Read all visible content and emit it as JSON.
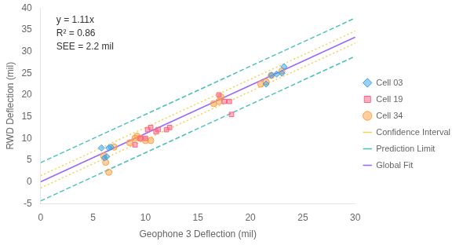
{
  "chart_data": {
    "type": "scatter",
    "xlabel": "Geophone 3 Deflection (mil)",
    "ylabel": "RWD Deflection (mil)",
    "annotation": "y = 1.11x\nR² = 0.86\nSEE = 2.2 mil",
    "xlim": [
      0,
      30
    ],
    "ylim": [
      -5,
      40
    ],
    "xticks": [
      0,
      5,
      10,
      15,
      20,
      25,
      30
    ],
    "yticks": [
      -5,
      0,
      5,
      10,
      15,
      20,
      25,
      30,
      35,
      40
    ],
    "grid": false,
    "legend": "right",
    "series": [
      {
        "name": "Cell 03",
        "type": "scatter",
        "marker": "diamond",
        "x": [
          5.8,
          6.1,
          6.3,
          6.5,
          6.7,
          21.5,
          22.0,
          22.5,
          23.0,
          23.2
        ],
        "values": [
          7.8,
          5.5,
          5.8,
          7.8,
          8.0,
          22.5,
          24.5,
          24.8,
          25.0,
          26.5
        ]
      },
      {
        "name": "Cell 19",
        "type": "scatter",
        "marker": "square",
        "x": [
          9.0,
          9.5,
          10.0,
          10.2,
          10.5,
          11.0,
          11.2,
          12.0,
          12.3,
          17.0,
          17.5,
          18.0,
          18.2
        ],
        "values": [
          8.5,
          10.0,
          10.0,
          12.0,
          12.5,
          11.5,
          12.0,
          12.0,
          12.5,
          20.0,
          18.5,
          18.5,
          15.5
        ]
      },
      {
        "name": "Cell 34",
        "type": "scatter",
        "marker": "circle",
        "x": [
          6.0,
          6.2,
          6.5,
          7.0,
          8.5,
          9.0,
          9.2,
          9.5,
          10.0,
          10.5,
          16.5,
          17.0,
          17.2,
          21.0,
          21.5,
          22.0,
          23.0
        ],
        "values": [
          6.0,
          4.5,
          2.2,
          8.0,
          9.0,
          10.0,
          10.5,
          10.0,
          9.5,
          9.5,
          18.0,
          18.5,
          19.5,
          22.5,
          23.0,
          24.5,
          25.5
        ]
      },
      {
        "name": "Confidence Interval",
        "type": "line",
        "line_style": "dotted",
        "x": [
          0,
          30,
          null,
          0,
          30
        ],
        "values": [
          1.4,
          34.7,
          null,
          -1.4,
          31.9
        ]
      },
      {
        "name": "Prediction Limit",
        "type": "line",
        "line_style": "dashed",
        "x": [
          0,
          30,
          null,
          0,
          30
        ],
        "values": [
          4.4,
          37.7,
          null,
          -4.4,
          28.9
        ]
      },
      {
        "name": "Global Fit",
        "type": "line",
        "line_style": "solid",
        "x": [
          0,
          30
        ],
        "values": [
          0,
          33.3
        ]
      }
    ]
  }
}
